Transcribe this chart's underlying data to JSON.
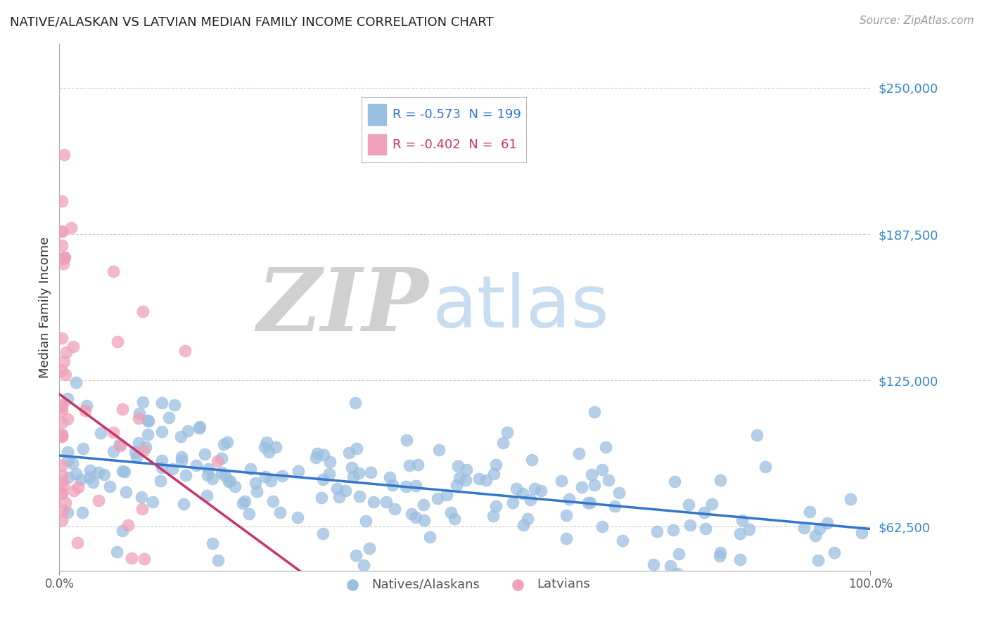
{
  "title": "NATIVE/ALASKAN VS LATVIAN MEDIAN FAMILY INCOME CORRELATION CHART",
  "source_text": "Source: ZipAtlas.com",
  "ylabel": "Median Family Income",
  "xlim": [
    0.0,
    1.0
  ],
  "ylim": [
    43750,
    268750
  ],
  "yticks": [
    62500,
    125000,
    187500,
    250000
  ],
  "ytick_labels": [
    "$62,500",
    "$125,000",
    "$187,500",
    "$250,000"
  ],
  "xticks": [
    0.0,
    1.0
  ],
  "xtick_labels": [
    "0.0%",
    "100.0%"
  ],
  "background_color": "#ffffff",
  "grid_color": "#cccccc",
  "blue_dot_color": "#9bbfe0",
  "pink_dot_color": "#f0a0b8",
  "blue_line_color": "#3377cc",
  "pink_line_color": "#cc3366",
  "zip_color": "#d0d0d0",
  "atlas_color": "#c8ddf0",
  "legend_R_blue": "-0.573",
  "legend_N_blue": "199",
  "legend_R_pink": "-0.402",
  "legend_N_pink": " 61",
  "legend_blue_label": "Natives/Alaskans",
  "legend_pink_label": "Latvians",
  "title_color": "#222222",
  "source_color": "#999999",
  "ylabel_color": "#333333",
  "ytick_color": "#3388cc",
  "xtick_color": "#555555",
  "legend_text_color_blue": "#3377cc",
  "legend_text_color_pink": "#cc3366",
  "legend_border_color": "#bbbbbb"
}
